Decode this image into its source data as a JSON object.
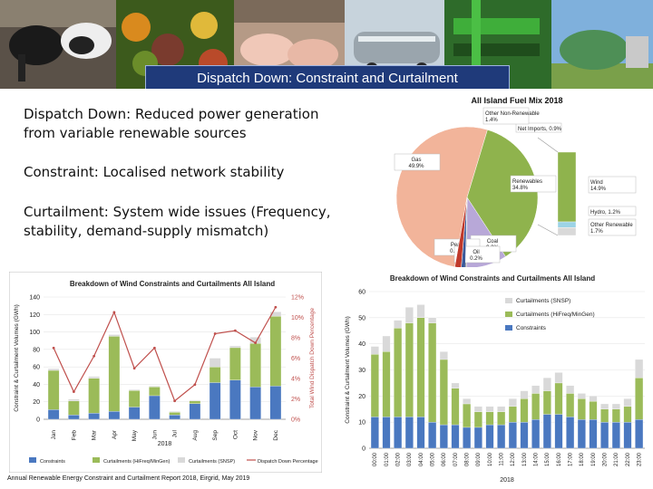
{
  "slide": {
    "title": "Dispatch Down: Constraint and Curtailment",
    "paragraphs": [
      "Dispatch Down: Reduced power generation from variable renewable sources",
      "Constraint: Localised network stability",
      "Curtailment: System wide issues (Frequency, stability, demand-supply mismatch)"
    ],
    "source": "Annual Renewable Energy Constraint and Curtailment Report 2018, Eirgrid, May 2019",
    "banner_photos": [
      "cows-photo",
      "vegetables-photo",
      "pigs-photo",
      "tanker-truck-photo",
      "green-machinery-photo",
      "biogas-plant-photo"
    ]
  },
  "chart_data": [
    {
      "type": "pie",
      "title": "All Island Fuel Mix 2018",
      "slices": [
        {
          "name": "Gas",
          "value": 49.9,
          "label": "Gas\n49.9%",
          "color": "#f2b49a"
        },
        {
          "name": "Renewables",
          "value": 34.8,
          "label": "Renewables\n34.8%",
          "color": "#8fb34d"
        },
        {
          "name": "Coal",
          "value": 9.0,
          "label": "Coal\n9.0%",
          "color": "#b8a8d8"
        },
        {
          "name": "Peat",
          "value": 0.0,
          "label": "Peat\n0.0%",
          "color": "#c8c8c8"
        },
        {
          "name": "Oil",
          "value": 0.2,
          "label": "Oil\n0.2%",
          "color": "#333333"
        },
        {
          "name": "Net Imports",
          "value": 0.9,
          "label": "Net Imports, 0.9%",
          "color": "#3b5a9a"
        },
        {
          "name": "Other Non-Renewable",
          "value": 1.4,
          "label": "Other Non-Renewable\n1.4%",
          "color": "#c0392b"
        }
      ],
      "breakout": [
        {
          "name": "Wind",
          "value": 14.9,
          "label": "Wind\n14.9%",
          "color": "#8fb34d"
        },
        {
          "name": "Hydro",
          "value": 1.2,
          "label": "Hydro, 1.2%",
          "color": "#9cd3e6"
        },
        {
          "name": "Other Renewable",
          "value": 1.7,
          "label": "Other Renewable\n1.7%",
          "color": "#d9d9d9"
        }
      ]
    },
    {
      "type": "bar",
      "title": "Breakdown of Wind Constraints and Curtailments All Island",
      "stacked": true,
      "xlabel": "2018",
      "ylabel": "Constraint & Curtailment Volumes (GWh)",
      "y2label": "Total Wind Dispatch Down Percentage",
      "categories": [
        "Jan",
        "Feb",
        "Mar",
        "Apr",
        "May",
        "Jun",
        "Jul",
        "Aug",
        "Sep",
        "Oct",
        "Nov",
        "Dec"
      ],
      "series": [
        {
          "name": "Constraints",
          "color": "#4a78c0",
          "values": [
            11,
            5,
            7,
            9,
            14,
            27,
            5,
            18,
            42,
            45,
            37,
            38
          ]
        },
        {
          "name": "Curtailments (HiFreq/MinGen)",
          "color": "#9bbb59",
          "values": [
            45,
            16,
            40,
            86,
            19,
            10,
            3,
            3,
            18,
            37,
            50,
            80
          ]
        },
        {
          "name": "Curtailments (SNSP)",
          "color": "#d9d9d9",
          "values": [
            2,
            2,
            2,
            2,
            1,
            1,
            1,
            1,
            10,
            2,
            7,
            5
          ]
        },
        {
          "name": "Dispatch Down Percentage",
          "color": "#c0504d",
          "type": "line",
          "axis": "right",
          "values": [
            7.0,
            2.7,
            6.2,
            10.5,
            5.0,
            7.0,
            1.8,
            3.4,
            8.4,
            8.7,
            7.5,
            11.0
          ]
        }
      ],
      "ylim": [
        0,
        140
      ],
      "yticks": [
        0,
        20,
        40,
        60,
        80,
        100,
        120,
        140
      ],
      "y2lim": [
        0,
        12
      ],
      "y2ticks": [
        "0%",
        "2%",
        "4%",
        "6%",
        "8%",
        "10%",
        "12%"
      ]
    },
    {
      "type": "bar",
      "title": "Breakdown of Wind Constraints and Curtailments All Island",
      "stacked": true,
      "xlabel": "2018",
      "ylabel": "Constraint & Curtailment Volumes (GWh)",
      "categories": [
        "00:00",
        "01:00",
        "02:00",
        "03:00",
        "04:00",
        "05:00",
        "06:00",
        "07:00",
        "08:00",
        "09:00",
        "10:00",
        "11:00",
        "12:00",
        "13:00",
        "14:00",
        "15:00",
        "16:00",
        "17:00",
        "18:00",
        "19:00",
        "20:00",
        "21:00",
        "22:00",
        "23:00"
      ],
      "series": [
        {
          "name": "Constraints",
          "color": "#4a78c0",
          "values": [
            12,
            12,
            12,
            12,
            12,
            10,
            9,
            9,
            8,
            8,
            9,
            9,
            10,
            10,
            11,
            13,
            13,
            12,
            11,
            11,
            10,
            10,
            10,
            11
          ]
        },
        {
          "name": "Curtailments (HiFreq/MinGen)",
          "color": "#9bbb59",
          "values": [
            24,
            25,
            34,
            36,
            38,
            38,
            25,
            14,
            9,
            6,
            5,
            5,
            6,
            9,
            10,
            9,
            12,
            9,
            8,
            7,
            5,
            5,
            6,
            16
          ]
        },
        {
          "name": "Curtailments (SNSP)",
          "color": "#d9d9d9",
          "values": [
            3,
            6,
            3,
            6,
            5,
            2,
            3,
            2,
            2,
            2,
            2,
            2,
            3,
            3,
            3,
            5,
            4,
            3,
            2,
            2,
            2,
            2,
            3,
            7
          ]
        }
      ],
      "ylim": [
        0,
        60
      ],
      "yticks": [
        0,
        10,
        20,
        30,
        40,
        50,
        60
      ]
    }
  ]
}
